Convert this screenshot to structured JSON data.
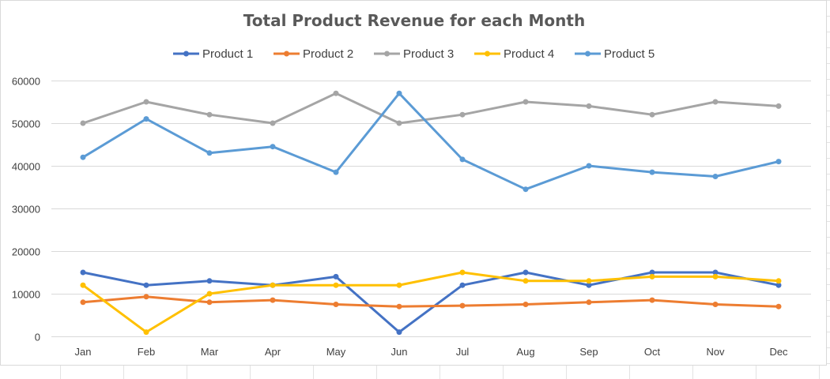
{
  "chart_data": {
    "type": "line",
    "title": "Total Product Revenue for each Month",
    "xlabel": "",
    "ylabel": "",
    "categories": [
      "Jan",
      "Feb",
      "Mar",
      "Apr",
      "May",
      "Jun",
      "Jul",
      "Aug",
      "Sep",
      "Oct",
      "Nov",
      "Dec"
    ],
    "ylim": [
      0,
      60000
    ],
    "yticks": [
      0,
      10000,
      20000,
      30000,
      40000,
      50000,
      60000
    ],
    "ytick_labels": [
      "0",
      "10000",
      "20000",
      "30000",
      "40000",
      "50000",
      "60000"
    ],
    "grid": true,
    "legend_position": "top",
    "series": [
      {
        "name": "Product 1",
        "color": "#4472C4",
        "values": [
          15000,
          12000,
          13000,
          12000,
          14000,
          1000,
          12000,
          15000,
          12000,
          15000,
          15000,
          12000
        ]
      },
      {
        "name": "Product 2",
        "color": "#ED7D31",
        "values": [
          8000,
          9300,
          8000,
          8500,
          7500,
          7000,
          7200,
          7500,
          8000,
          8500,
          7500,
          7000
        ]
      },
      {
        "name": "Product 3",
        "color": "#A5A5A5",
        "values": [
          50000,
          55000,
          52000,
          50000,
          57000,
          50000,
          52000,
          55000,
          54000,
          52000,
          55000,
          54000
        ]
      },
      {
        "name": "Product 4",
        "color": "#FFC000",
        "values": [
          12000,
          1000,
          10000,
          12000,
          12000,
          12000,
          15000,
          13000,
          13000,
          14000,
          14000,
          13000
        ]
      },
      {
        "name": "Product 5",
        "color": "#5B9BD5",
        "values": [
          42000,
          51000,
          43000,
          44500,
          38500,
          57000,
          41500,
          34500,
          40000,
          38500,
          37500,
          41000
        ]
      }
    ]
  }
}
